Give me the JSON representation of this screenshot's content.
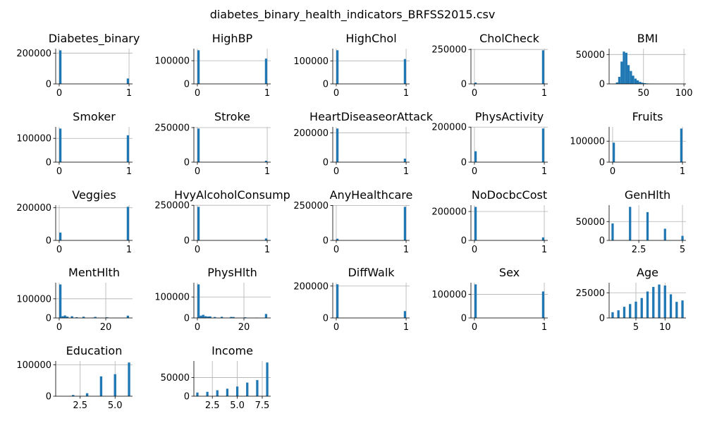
{
  "figure": {
    "title": "diabetes_binary_health_indicators_BRFSS2015.csv"
  },
  "style": {
    "bar_color": "#1f77b4",
    "grid_color": "#b0b0b0",
    "axis_color": "#000000"
  },
  "chart_data": [
    {
      "type": "bar",
      "title": "Diabetes_binary",
      "bars": [
        {
          "x": 0,
          "y": 218000
        },
        {
          "x": 1,
          "y": 35000
        }
      ],
      "xlim": [
        -0.05,
        1.05
      ],
      "ylim": [
        0,
        229000
      ],
      "xticks": [
        {
          "v": 0,
          "label": "0"
        },
        {
          "v": 1,
          "label": "1"
        }
      ],
      "yticks": [
        {
          "v": 0,
          "label": "0"
        },
        {
          "v": 200000,
          "label": "200000"
        }
      ],
      "grid": true
    },
    {
      "type": "bar",
      "title": "HighBP",
      "bars": [
        {
          "x": 0,
          "y": 145000
        },
        {
          "x": 1,
          "y": 109000
        }
      ],
      "xlim": [
        -0.05,
        1.05
      ],
      "ylim": [
        0,
        152000
      ],
      "xticks": [
        {
          "v": 0,
          "label": "0"
        },
        {
          "v": 1,
          "label": "1"
        }
      ],
      "yticks": [
        {
          "v": 0,
          "label": "0"
        },
        {
          "v": 100000,
          "label": "100000"
        }
      ],
      "grid": true
    },
    {
      "type": "bar",
      "title": "HighChol",
      "bars": [
        {
          "x": 0,
          "y": 146000
        },
        {
          "x": 1,
          "y": 108000
        }
      ],
      "xlim": [
        -0.05,
        1.05
      ],
      "ylim": [
        0,
        153000
      ],
      "xticks": [
        {
          "v": 0,
          "label": "0"
        },
        {
          "v": 1,
          "label": "1"
        }
      ],
      "yticks": [
        {
          "v": 0,
          "label": "0"
        },
        {
          "v": 100000,
          "label": "100000"
        }
      ],
      "grid": true
    },
    {
      "type": "bar",
      "title": "CholCheck",
      "bars": [
        {
          "x": 0,
          "y": 9500
        },
        {
          "x": 1,
          "y": 244000
        }
      ],
      "xlim": [
        -0.05,
        1.05
      ],
      "ylim": [
        0,
        256000
      ],
      "xticks": [
        {
          "v": 0,
          "label": "0"
        },
        {
          "v": 1,
          "label": "1"
        }
      ],
      "yticks": [
        {
          "v": 0,
          "label": "0"
        },
        {
          "v": 250000,
          "label": "250000"
        }
      ],
      "grid": true
    },
    {
      "type": "histogram",
      "title": "BMI",
      "bars": [
        {
          "x": 14.4,
          "y": 500
        },
        {
          "x": 17.3,
          "y": 2500
        },
        {
          "x": 20.1,
          "y": 12000
        },
        {
          "x": 23.0,
          "y": 38000
        },
        {
          "x": 25.8,
          "y": 55000
        },
        {
          "x": 28.7,
          "y": 53000
        },
        {
          "x": 31.5,
          "y": 32000
        },
        {
          "x": 34.4,
          "y": 22000
        },
        {
          "x": 37.2,
          "y": 14000
        },
        {
          "x": 40.1,
          "y": 9000
        },
        {
          "x": 42.9,
          "y": 6000
        },
        {
          "x": 45.8,
          "y": 3500
        },
        {
          "x": 48.6,
          "y": 2000
        },
        {
          "x": 51.5,
          "y": 1300
        },
        {
          "x": 54.3,
          "y": 800
        },
        {
          "x": 57.2,
          "y": 500
        },
        {
          "x": 60.0,
          "y": 300
        },
        {
          "x": 62.9,
          "y": 200
        }
      ],
      "bin_width": 2.85,
      "xlim": [
        7.5,
        102.5
      ],
      "ylim": [
        0,
        60000
      ],
      "xticks": [
        {
          "v": 50,
          "label": "50"
        },
        {
          "v": 100,
          "label": "100"
        }
      ],
      "yticks": [
        {
          "v": 0,
          "label": "0"
        },
        {
          "v": 50000,
          "label": "50000"
        }
      ],
      "grid": true
    },
    {
      "type": "bar",
      "title": "Smoker",
      "bars": [
        {
          "x": 0,
          "y": 141000
        },
        {
          "x": 1,
          "y": 113000
        }
      ],
      "xlim": [
        -0.05,
        1.05
      ],
      "ylim": [
        0,
        148000
      ],
      "xticks": [
        {
          "v": 0,
          "label": "0"
        },
        {
          "v": 1,
          "label": "1"
        }
      ],
      "yticks": [
        {
          "v": 0,
          "label": "0"
        },
        {
          "v": 100000,
          "label": "100000"
        }
      ],
      "grid": true
    },
    {
      "type": "bar",
      "title": "Stroke",
      "bars": [
        {
          "x": 0,
          "y": 243000
        },
        {
          "x": 1,
          "y": 10000
        }
      ],
      "xlim": [
        -0.05,
        1.05
      ],
      "ylim": [
        0,
        255000
      ],
      "xticks": [
        {
          "v": 0,
          "label": "0"
        },
        {
          "v": 1,
          "label": "1"
        }
      ],
      "yticks": [
        {
          "v": 0,
          "label": "0"
        },
        {
          "v": 250000,
          "label": "250000"
        }
      ],
      "grid": true
    },
    {
      "type": "bar",
      "title": "HeartDiseaseorAttack",
      "bars": [
        {
          "x": 0,
          "y": 229000
        },
        {
          "x": 1,
          "y": 24000
        }
      ],
      "xlim": [
        -0.05,
        1.05
      ],
      "ylim": [
        0,
        240000
      ],
      "xticks": [
        {
          "v": 0,
          "label": "0"
        },
        {
          "v": 1,
          "label": "1"
        }
      ],
      "yticks": [
        {
          "v": 0,
          "label": "0"
        },
        {
          "v": 200000,
          "label": "200000"
        }
      ],
      "grid": true
    },
    {
      "type": "bar",
      "title": "PhysActivity",
      "bars": [
        {
          "x": 0,
          "y": 62000
        },
        {
          "x": 1,
          "y": 192000
        }
      ],
      "xlim": [
        -0.05,
        1.05
      ],
      "ylim": [
        0,
        201000
      ],
      "xticks": [
        {
          "v": 0,
          "label": "0"
        },
        {
          "v": 1,
          "label": "1"
        }
      ],
      "yticks": [
        {
          "v": 0,
          "label": "0"
        },
        {
          "v": 200000,
          "label": "200000"
        }
      ],
      "grid": true
    },
    {
      "type": "bar",
      "title": "Fruits",
      "bars": [
        {
          "x": 0,
          "y": 93000
        },
        {
          "x": 1,
          "y": 160000
        }
      ],
      "xlim": [
        -0.05,
        1.05
      ],
      "ylim": [
        0,
        168000
      ],
      "xticks": [
        {
          "v": 0,
          "label": "0"
        },
        {
          "v": 1,
          "label": "1"
        }
      ],
      "yticks": [
        {
          "v": 0,
          "label": "0"
        },
        {
          "v": 100000,
          "label": "100000"
        }
      ],
      "grid": true
    },
    {
      "type": "bar",
      "title": "Veggies",
      "bars": [
        {
          "x": 0,
          "y": 48000
        },
        {
          "x": 1,
          "y": 206000
        }
      ],
      "xlim": [
        -0.05,
        1.05
      ],
      "ylim": [
        0,
        216000
      ],
      "xticks": [
        {
          "v": 0,
          "label": "0"
        },
        {
          "v": 1,
          "label": "1"
        }
      ],
      "yticks": [
        {
          "v": 0,
          "label": "0"
        },
        {
          "v": 200000,
          "label": "200000"
        }
      ],
      "grid": true
    },
    {
      "type": "bar",
      "title": "HvyAlcoholConsump",
      "bars": [
        {
          "x": 0,
          "y": 239000
        },
        {
          "x": 1,
          "y": 14000
        }
      ],
      "xlim": [
        -0.05,
        1.05
      ],
      "ylim": [
        0,
        251000
      ],
      "xticks": [
        {
          "v": 0,
          "label": "0"
        },
        {
          "v": 1,
          "label": "1"
        }
      ],
      "yticks": [
        {
          "v": 0,
          "label": "0"
        },
        {
          "v": 250000,
          "label": "250000"
        }
      ],
      "grid": true
    },
    {
      "type": "bar",
      "title": "AnyHealthcare",
      "bars": [
        {
          "x": 0,
          "y": 12000
        },
        {
          "x": 1,
          "y": 241000
        }
      ],
      "xlim": [
        -0.05,
        1.05
      ],
      "ylim": [
        0,
        253000
      ],
      "xticks": [
        {
          "v": 0,
          "label": "0"
        },
        {
          "v": 1,
          "label": "1"
        }
      ],
      "yticks": [
        {
          "v": 0,
          "label": "0"
        },
        {
          "v": 250000,
          "label": "250000"
        }
      ],
      "grid": true
    },
    {
      "type": "bar",
      "title": "NoDocbcCost",
      "bars": [
        {
          "x": 0,
          "y": 232000
        },
        {
          "x": 1,
          "y": 21000
        }
      ],
      "xlim": [
        -0.05,
        1.05
      ],
      "ylim": [
        0,
        244000
      ],
      "xticks": [
        {
          "v": 0,
          "label": "0"
        },
        {
          "v": 1,
          "label": "1"
        }
      ],
      "yticks": [
        {
          "v": 0,
          "label": "0"
        },
        {
          "v": 200000,
          "label": "200000"
        }
      ],
      "grid": true
    },
    {
      "type": "histogram",
      "title": "GenHlth",
      "bars": [
        {
          "x": 1.0,
          "y": 45000
        },
        {
          "x": 2.0,
          "y": 89000
        },
        {
          "x": 3.0,
          "y": 75000
        },
        {
          "x": 4.0,
          "y": 31000
        },
        {
          "x": 5.0,
          "y": 12000
        }
      ],
      "bin_width": 0.13,
      "xlim": [
        0.8,
        5.2
      ],
      "ylim": [
        0,
        93500
      ],
      "xticks": [
        {
          "v": 2.5,
          "label": "2.5"
        },
        {
          "v": 5,
          "label": "5"
        }
      ],
      "yticks": [
        {
          "v": 0,
          "label": "0"
        },
        {
          "v": 50000,
          "label": "50000"
        }
      ],
      "grid": true
    },
    {
      "type": "histogram",
      "title": "MentHlth",
      "bars": [
        {
          "x": 0.5,
          "y": 175000
        },
        {
          "x": 1.5,
          "y": 9000
        },
        {
          "x": 2.5,
          "y": 13000
        },
        {
          "x": 3.5,
          "y": 7000
        },
        {
          "x": 5.5,
          "y": 9000
        },
        {
          "x": 7.5,
          "y": 4000
        },
        {
          "x": 10.5,
          "y": 6500
        },
        {
          "x": 14.5,
          "y": 2000
        },
        {
          "x": 15.5,
          "y": 5500
        },
        {
          "x": 20.5,
          "y": 3500
        },
        {
          "x": 25.5,
          "y": 1200
        },
        {
          "x": 29.5,
          "y": 12000
        }
      ],
      "bin_width": 1.0,
      "xlim": [
        -1.5,
        31.5
      ],
      "ylim": [
        0,
        184000
      ],
      "xticks": [
        {
          "v": 0,
          "label": "0"
        },
        {
          "v": 20,
          "label": "20"
        }
      ],
      "yticks": [
        {
          "v": 0,
          "label": "0"
        },
        {
          "v": 100000,
          "label": "100000"
        }
      ],
      "grid": true
    },
    {
      "type": "histogram",
      "title": "PhysHlth",
      "bars": [
        {
          "x": 0.5,
          "y": 160000
        },
        {
          "x": 1.5,
          "y": 11000
        },
        {
          "x": 2.5,
          "y": 15000
        },
        {
          "x": 3.5,
          "y": 8500
        },
        {
          "x": 4.5,
          "y": 7000
        },
        {
          "x": 5.5,
          "y": 7500
        },
        {
          "x": 7.5,
          "y": 4500
        },
        {
          "x": 10.5,
          "y": 5500
        },
        {
          "x": 14.5,
          "y": 4900
        },
        {
          "x": 15.5,
          "y": 4500
        },
        {
          "x": 20.5,
          "y": 3300
        },
        {
          "x": 25.5,
          "y": 1300
        },
        {
          "x": 29.5,
          "y": 19000
        }
      ],
      "bin_width": 1.0,
      "xlim": [
        -1.5,
        31.5
      ],
      "ylim": [
        0,
        168000
      ],
      "xticks": [
        {
          "v": 0,
          "label": "0"
        },
        {
          "v": 20,
          "label": "20"
        }
      ],
      "yticks": [
        {
          "v": 0,
          "label": "0"
        },
        {
          "v": 100000,
          "label": "100000"
        }
      ],
      "grid": true
    },
    {
      "type": "bar",
      "title": "DiffWalk",
      "bars": [
        {
          "x": 0,
          "y": 211000
        },
        {
          "x": 1,
          "y": 43000
        }
      ],
      "xlim": [
        -0.05,
        1.05
      ],
      "ylim": [
        0,
        221000
      ],
      "xticks": [
        {
          "v": 0,
          "label": "0"
        },
        {
          "v": 1,
          "label": "1"
        }
      ],
      "yticks": [
        {
          "v": 0,
          "label": "0"
        },
        {
          "v": 200000,
          "label": "200000"
        }
      ],
      "grid": true
    },
    {
      "type": "bar",
      "title": "Sex",
      "bars": [
        {
          "x": 0,
          "y": 142000
        },
        {
          "x": 1,
          "y": 112000
        }
      ],
      "xlim": [
        -0.05,
        1.05
      ],
      "ylim": [
        0,
        149000
      ],
      "xticks": [
        {
          "v": 0,
          "label": "0"
        },
        {
          "v": 1,
          "label": "1"
        }
      ],
      "yticks": [
        {
          "v": 0,
          "label": "0"
        },
        {
          "v": 100000,
          "label": "100000"
        }
      ],
      "grid": true
    },
    {
      "type": "histogram",
      "title": "Age",
      "bars": [
        {
          "x": 1,
          "y": 5700
        },
        {
          "x": 2,
          "y": 7600
        },
        {
          "x": 3,
          "y": 11100
        },
        {
          "x": 4,
          "y": 13800
        },
        {
          "x": 5,
          "y": 16200
        },
        {
          "x": 6,
          "y": 19800
        },
        {
          "x": 7,
          "y": 26300
        },
        {
          "x": 8,
          "y": 30800
        },
        {
          "x": 9,
          "y": 33200
        },
        {
          "x": 10,
          "y": 32200
        },
        {
          "x": 11,
          "y": 23500
        },
        {
          "x": 12,
          "y": 16000
        },
        {
          "x": 13,
          "y": 17400
        }
      ],
      "bin_width": 0.4,
      "xlim": [
        0.4,
        13.6
      ],
      "ylim": [
        0,
        35000
      ],
      "xticks": [
        {
          "v": 5,
          "label": "5"
        },
        {
          "v": 10,
          "label": "10"
        }
      ],
      "yticks": [
        {
          "v": 0,
          "label": "0"
        },
        {
          "v": 25000,
          "label": "25000"
        }
      ],
      "grid": true
    },
    {
      "type": "histogram",
      "title": "Education",
      "bars": [
        {
          "x": 1,
          "y": 170
        },
        {
          "x": 2,
          "y": 4000
        },
        {
          "x": 3,
          "y": 9500
        },
        {
          "x": 4,
          "y": 63000
        },
        {
          "x": 5,
          "y": 70000
        },
        {
          "x": 6,
          "y": 107000
        }
      ],
      "bin_width": 0.17,
      "xlim": [
        0.75,
        6.25
      ],
      "ylim": [
        0,
        112000
      ],
      "xticks": [
        {
          "v": 2.5,
          "label": "2.5"
        },
        {
          "v": 5,
          "label": "5.0"
        }
      ],
      "yticks": [
        {
          "v": 0,
          "label": "0"
        },
        {
          "v": 100000,
          "label": "100000"
        }
      ],
      "grid": true
    },
    {
      "type": "histogram",
      "title": "Income",
      "bars": [
        {
          "x": 1,
          "y": 9800
        },
        {
          "x": 2,
          "y": 11800
        },
        {
          "x": 3,
          "y": 16000
        },
        {
          "x": 4,
          "y": 20100
        },
        {
          "x": 5,
          "y": 25900
        },
        {
          "x": 6,
          "y": 36500
        },
        {
          "x": 7,
          "y": 43200
        },
        {
          "x": 8,
          "y": 90400
        }
      ],
      "bin_width": 0.23,
      "xlim": [
        0.65,
        8.35
      ],
      "ylim": [
        0,
        94500
      ],
      "xticks": [
        {
          "v": 2.5,
          "label": "2.5"
        },
        {
          "v": 5,
          "label": "5.0"
        },
        {
          "v": 7.5,
          "label": "7.5"
        }
      ],
      "yticks": [
        {
          "v": 0,
          "label": "0"
        },
        {
          "v": 50000,
          "label": "50000"
        }
      ],
      "grid": true
    }
  ]
}
